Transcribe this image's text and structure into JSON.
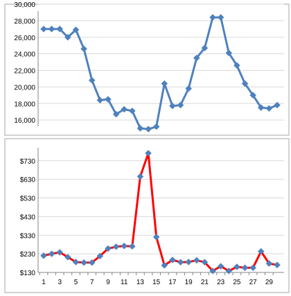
{
  "chart_data": [
    {
      "type": "line",
      "x": [
        1,
        2,
        3,
        4,
        5,
        6,
        7,
        8,
        9,
        10,
        11,
        12,
        13,
        14,
        15,
        16,
        17,
        18,
        19,
        20,
        21,
        22,
        23,
        24,
        25,
        26,
        27,
        28,
        29,
        30
      ],
      "series": [
        {
          "values": [
            27000,
            27000,
            27000,
            26000,
            26900,
            24600,
            20800,
            18400,
            18500,
            16700,
            17300,
            17100,
            15000,
            14900,
            15200,
            20400,
            17700,
            17800,
            19800,
            23500,
            24700,
            28400,
            28400,
            24100,
            22600,
            20400,
            19000,
            17500,
            17400,
            17800
          ],
          "color": "#4f81bd",
          "marker": "diamond"
        }
      ],
      "y_ticks": [
        "30,000",
        "28,000",
        "26,000",
        "24,000",
        "22,000",
        "20,000",
        "18,000",
        "16,000"
      ],
      "ylim": [
        14000,
        30000
      ],
      "grid": "horizontal"
    },
    {
      "type": "line",
      "x": [
        1,
        2,
        3,
        4,
        5,
        6,
        7,
        8,
        9,
        10,
        11,
        12,
        13,
        14,
        15,
        16,
        17,
        18,
        19,
        20,
        21,
        22,
        23,
        24,
        25,
        26,
        27,
        28,
        29,
        30
      ],
      "x_ticks": [
        "1",
        "3",
        "5",
        "7",
        "9",
        "11",
        "13",
        "15",
        "17",
        "19",
        "21",
        "23",
        "25",
        "27",
        "29"
      ],
      "series": [
        {
          "values": [
            220,
            230,
            238,
            212,
            186,
            183,
            183,
            218,
            258,
            268,
            272,
            270,
            645,
            770,
            320,
            168,
            197,
            185,
            186,
            195,
            185,
            138,
            163,
            138,
            160,
            155,
            155,
            243,
            178,
            170
          ],
          "line_color": "#ff0000",
          "marker_color": "#4f81bd",
          "marker": "diamond"
        }
      ],
      "y_ticks": [
        "$730",
        "$630",
        "$530",
        "$430",
        "$330",
        "$230",
        "$130"
      ],
      "ylim": [
        130,
        800
      ],
      "grid": "horizontal"
    }
  ]
}
